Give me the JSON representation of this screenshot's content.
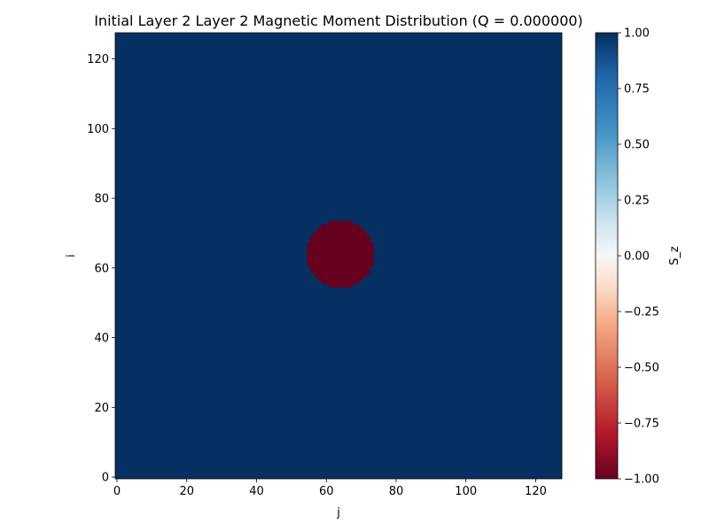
{
  "chart_data": {
    "type": "heatmap",
    "title": "Initial Layer 2 Layer 2 Magnetic Moment Distribution (Q = 0.000000)",
    "xlabel": "j",
    "ylabel": "i",
    "xlim": [
      -0.5,
      127.5
    ],
    "ylim": [
      -0.5,
      127.5
    ],
    "grid_size": [
      128,
      128
    ],
    "background_value": 1.0,
    "skyrmion": {
      "center_i": 64,
      "center_j": 64,
      "radius": 9.5,
      "value": -1.0
    },
    "xticks": [
      0,
      20,
      40,
      60,
      80,
      100,
      120
    ],
    "yticks": [
      0,
      20,
      40,
      60,
      80,
      100,
      120
    ],
    "colorbar": {
      "label": "S_z",
      "vmin": -1.0,
      "vmax": 1.0,
      "colormap": "RdBu",
      "ticks": [
        -1.0,
        -0.75,
        -0.5,
        -0.25,
        0.0,
        0.25,
        0.5,
        0.75,
        1.0
      ],
      "tick_labels": [
        "−1.00",
        "−0.75",
        "−0.50",
        "−0.25",
        "0.00",
        "0.25",
        "0.50",
        "0.75",
        "1.00"
      ]
    },
    "colors": {
      "high": "#053061",
      "low": "#67001f",
      "axes": "#000000"
    }
  }
}
